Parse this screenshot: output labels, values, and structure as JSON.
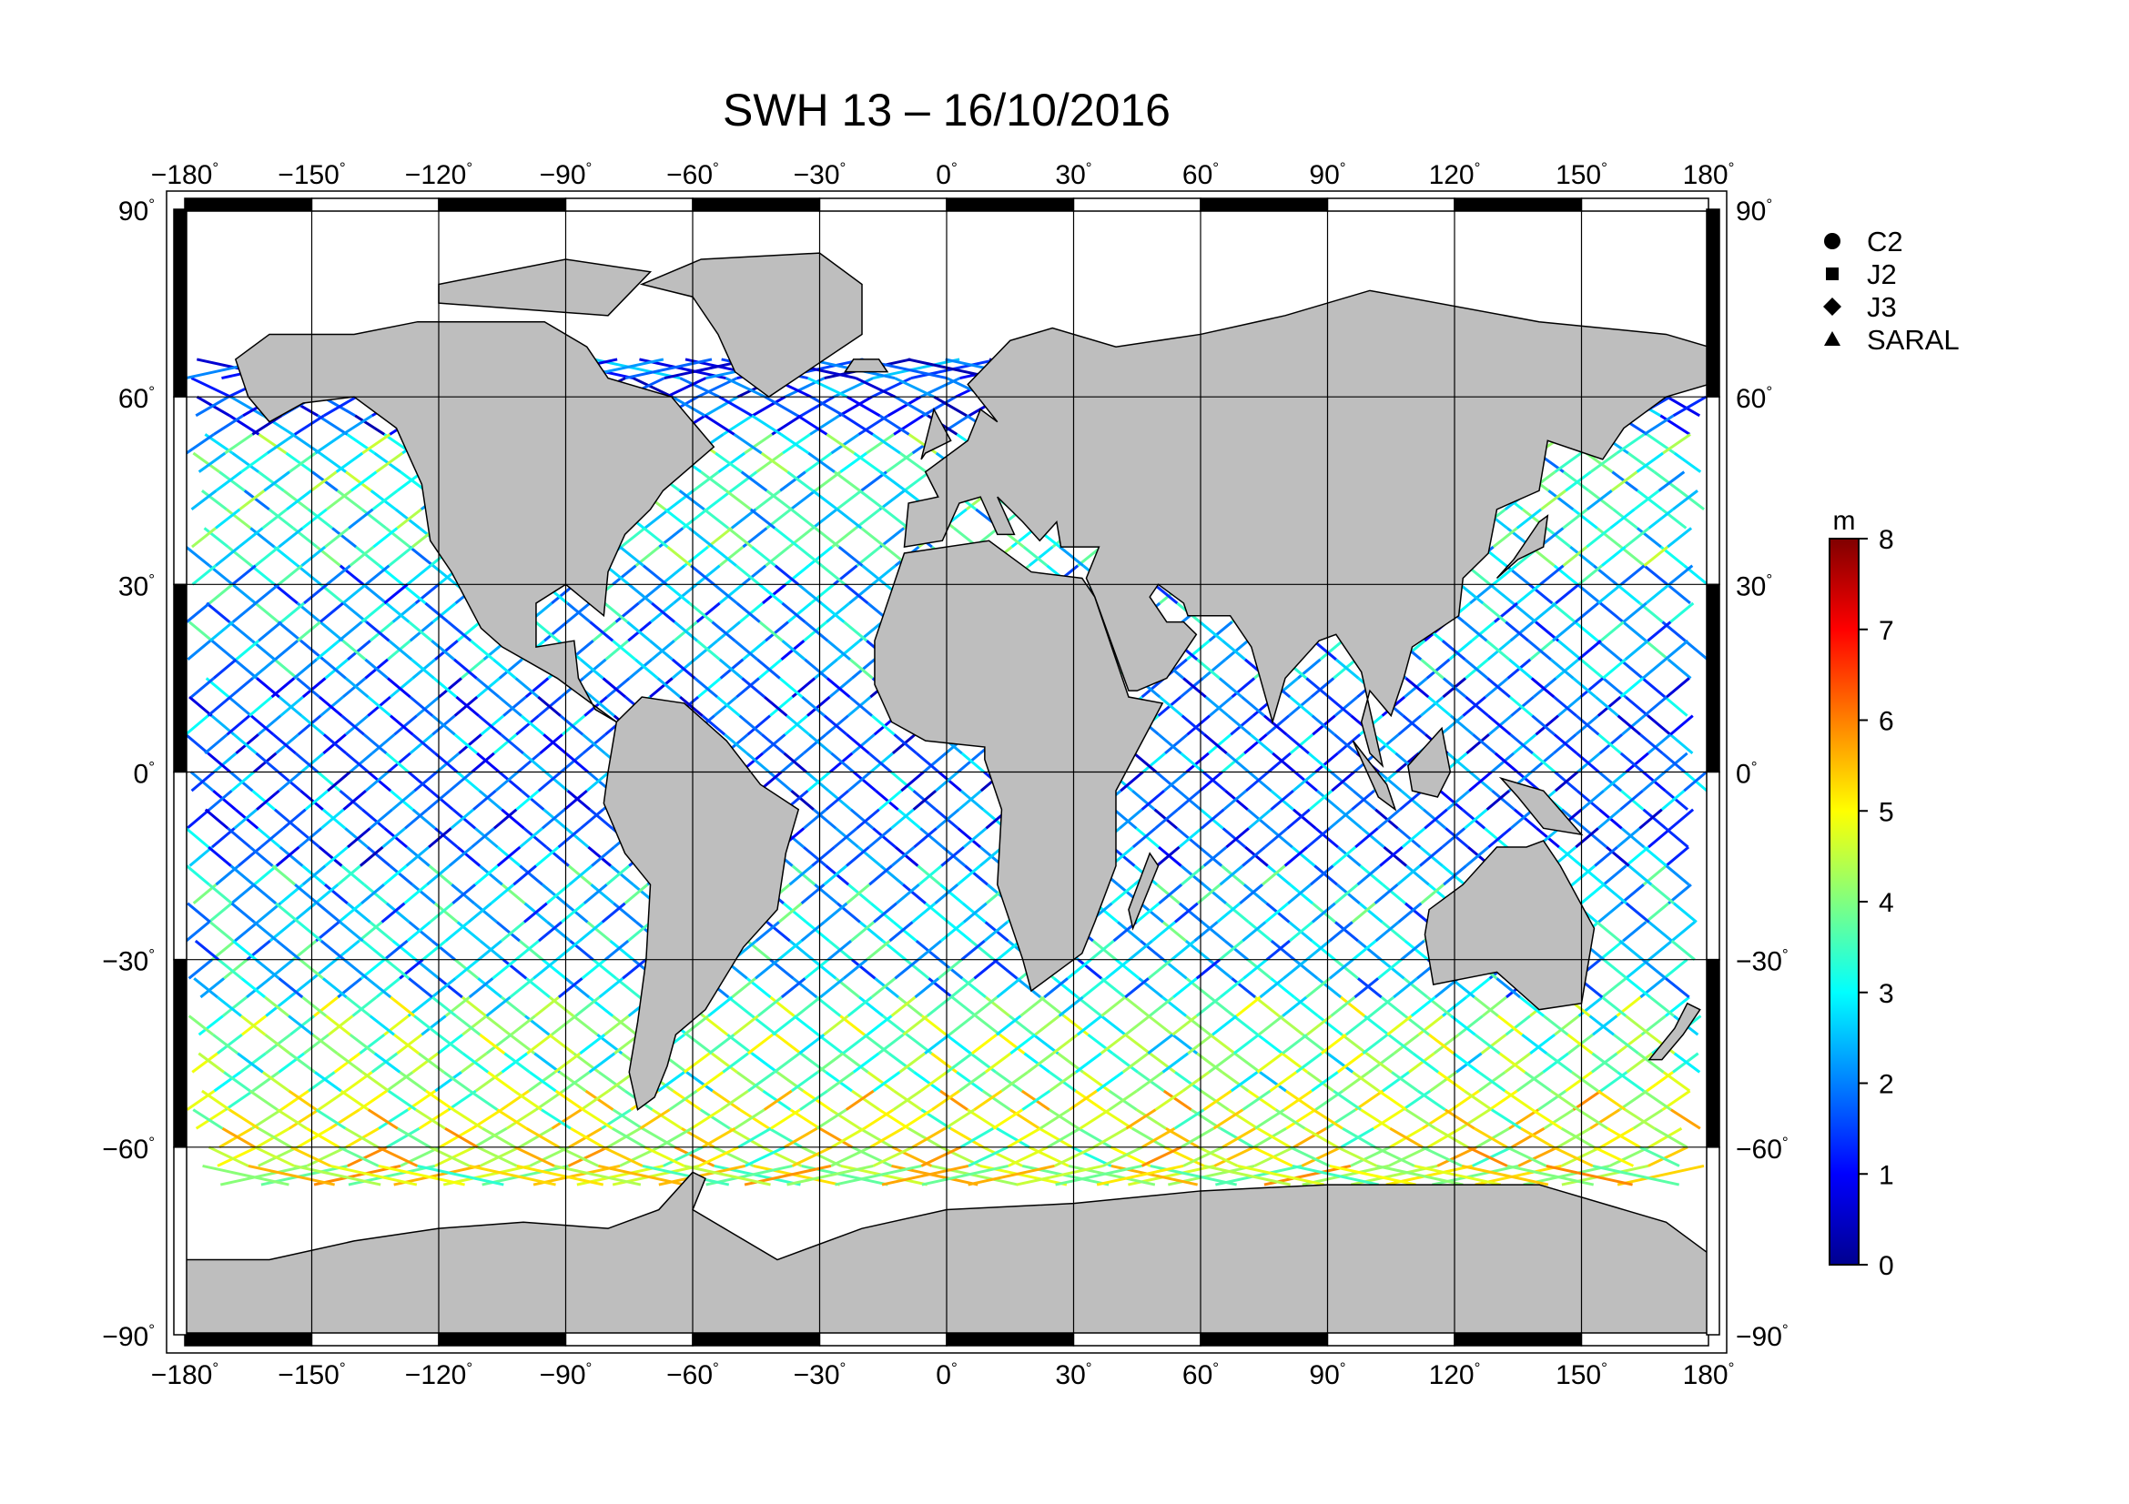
{
  "title": "SWH 13 – 16/10/2016",
  "map": {
    "lon_ticks": [
      -180,
      -150,
      -120,
      -90,
      -60,
      -30,
      0,
      30,
      60,
      90,
      120,
      150,
      180
    ],
    "lat_ticks": [
      90,
      60,
      30,
      0,
      -30,
      -60,
      -90
    ],
    "lon_tick_labels": [
      "−180",
      "−150",
      "−120",
      "−90",
      "−60",
      "−30",
      "0",
      "30",
      "60",
      "90",
      "120",
      "150",
      "180"
    ],
    "lat_tick_labels": [
      "90",
      "60",
      "30",
      "0",
      "−30",
      "−60",
      "−90"
    ],
    "degree_symbol": "°",
    "land_color": "#bebebe",
    "ocean_color": "#ffffff"
  },
  "legend": {
    "items": [
      {
        "label": "C2",
        "marker": "circle"
      },
      {
        "label": "J2",
        "marker": "square"
      },
      {
        "label": "J3",
        "marker": "diamond"
      },
      {
        "label": "SARAL",
        "marker": "triangle"
      }
    ]
  },
  "colorbar": {
    "unit": "m",
    "min": 0,
    "max": 8,
    "tick_labels": [
      "0",
      "1",
      "2",
      "3",
      "4",
      "5",
      "6",
      "7",
      "8"
    ],
    "colors": [
      "#00008f",
      "#0000ff",
      "#0080ff",
      "#00ffff",
      "#80ff80",
      "#ffff00",
      "#ff8000",
      "#ff0000",
      "#800000"
    ]
  },
  "swh_bands": [
    {
      "lat": [
        35,
        55
      ],
      "swh": 3.2
    },
    {
      "lat": [
        15,
        35
      ],
      "swh": 2.4
    },
    {
      "lat": [
        -15,
        15
      ],
      "swh": 1.8
    },
    {
      "lat": [
        -35,
        -15
      ],
      "swh": 2.6
    },
    {
      "lat": [
        -50,
        -35
      ],
      "swh": 3.8
    },
    {
      "lat": [
        -64,
        -50
      ],
      "swh": 4.6
    }
  ]
}
